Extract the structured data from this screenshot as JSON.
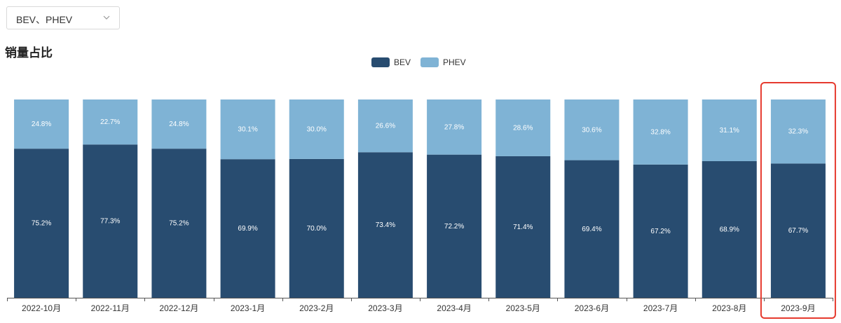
{
  "selector": {
    "value": "BEV、PHEV",
    "icon": "chevron-down-icon"
  },
  "section_title": "销量占比",
  "colors": {
    "bev": "#284C70",
    "phev": "#7FB3D5",
    "highlight": "#E63A2E",
    "axis": "#555555",
    "label_bev": "#ffffff",
    "label_phev": "#ffffff"
  },
  "chart_data": {
    "type": "bar",
    "stacked": true,
    "normalized": true,
    "categories": [
      "2022-10月",
      "2022-11月",
      "2022-12月",
      "2023-1月",
      "2023-2月",
      "2023-3月",
      "2023-4月",
      "2023-5月",
      "2023-6月",
      "2023-7月",
      "2023-8月",
      "2023-9月"
    ],
    "series": [
      {
        "name": "BEV",
        "values": [
          75.2,
          77.3,
          75.2,
          69.9,
          70.0,
          73.4,
          72.2,
          71.4,
          69.4,
          67.2,
          68.9,
          67.7
        ],
        "labels": [
          "75.2%",
          "77.3%",
          "75.2%",
          "69.9%",
          "70.0%",
          "73.4%",
          "72.2%",
          "71.4%",
          "69.4%",
          "67.2%",
          "68.9%",
          "67.7%"
        ]
      },
      {
        "name": "PHEV",
        "values": [
          24.8,
          22.7,
          24.8,
          30.1,
          30.0,
          26.6,
          27.8,
          28.6,
          30.6,
          32.8,
          31.1,
          32.3
        ],
        "labels": [
          "24.8%",
          "22.7%",
          "24.8%",
          "30.1%",
          "30.0%",
          "26.6%",
          "27.8%",
          "28.6%",
          "30.6%",
          "32.8%",
          "31.1%",
          "32.3%"
        ]
      }
    ],
    "ylim": [
      0,
      100
    ],
    "legend": "top-center",
    "grid": false,
    "highlighted_category": "2023-9月"
  }
}
